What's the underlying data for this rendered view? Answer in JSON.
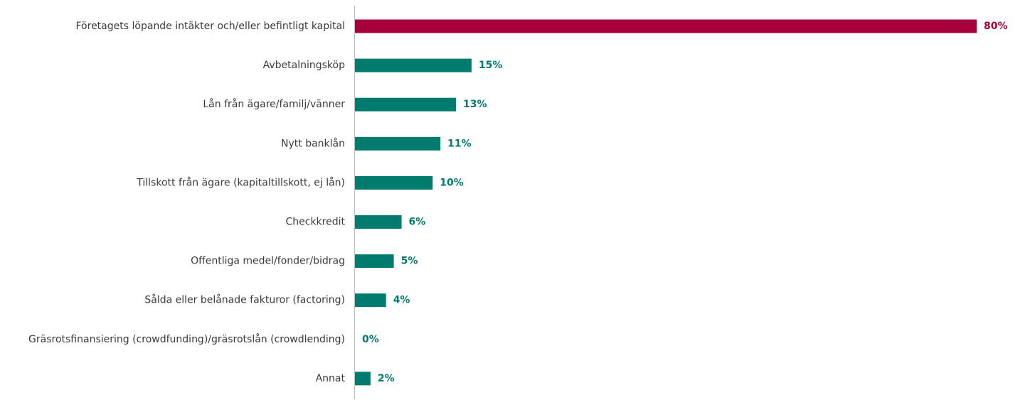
{
  "chart_data": {
    "type": "bar",
    "orientation": "horizontal",
    "categories": [
      "Företagets löpande intäkter och/eller befintligt kapital",
      "Avbetalningsköp",
      "Lån från ägare/familj/vänner",
      "Nytt banklån",
      "Tillskott från ägare (kapitaltillskott, ej lån)",
      "Checkkredit",
      "Offentliga medel/fonder/bidrag",
      "Sålda eller belånade fakturor (factoring)",
      "Gräsrotsfinansiering (crowdfunding)/gräsrotslån (crowdlending)",
      "Annat"
    ],
    "values": [
      80,
      15,
      13,
      11,
      10,
      6,
      5,
      4,
      0,
      2
    ],
    "value_labels": [
      "80%",
      "15%",
      "13%",
      "11%",
      "10%",
      "6%",
      "5%",
      "4%",
      "0%",
      "2%"
    ],
    "xlim": [
      0,
      80
    ],
    "grid": false,
    "legend": "none",
    "highlight_index": 0,
    "colors": {
      "highlight": "#A8003B",
      "default": "#007B6E",
      "axis": "#BFBFBF",
      "label": "#3A3A3A"
    }
  }
}
